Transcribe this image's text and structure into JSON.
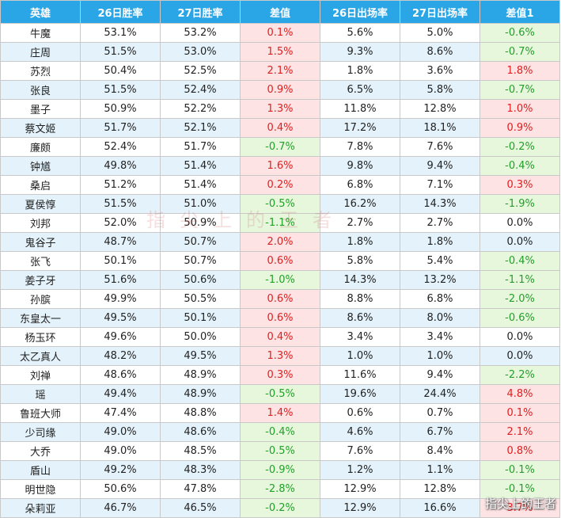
{
  "table": {
    "headers": [
      "英雄",
      "26日胜率",
      "27日胜率",
      "差值",
      "26日出场率",
      "27日出场率",
      "差值1"
    ],
    "rows": [
      [
        "牛魔",
        "53.1%",
        "53.2%",
        "0.1%",
        "5.6%",
        "5.0%",
        "-0.6%"
      ],
      [
        "庄周",
        "51.5%",
        "53.0%",
        "1.5%",
        "9.3%",
        "8.6%",
        "-0.7%"
      ],
      [
        "苏烈",
        "50.4%",
        "52.5%",
        "2.1%",
        "1.8%",
        "3.6%",
        "1.8%"
      ],
      [
        "张良",
        "51.5%",
        "52.4%",
        "0.9%",
        "6.5%",
        "5.8%",
        "-0.7%"
      ],
      [
        "墨子",
        "50.9%",
        "52.2%",
        "1.3%",
        "11.8%",
        "12.8%",
        "1.0%"
      ],
      [
        "蔡文姬",
        "51.7%",
        "52.1%",
        "0.4%",
        "17.2%",
        "18.1%",
        "0.9%"
      ],
      [
        "廉颇",
        "52.4%",
        "51.7%",
        "-0.7%",
        "7.8%",
        "7.6%",
        "-0.2%"
      ],
      [
        "钟馗",
        "49.8%",
        "51.4%",
        "1.6%",
        "9.8%",
        "9.4%",
        "-0.4%"
      ],
      [
        "桑启",
        "51.2%",
        "51.4%",
        "0.2%",
        "6.8%",
        "7.1%",
        "0.3%"
      ],
      [
        "夏侯惇",
        "51.5%",
        "51.0%",
        "-0.5%",
        "16.2%",
        "14.3%",
        "-1.9%"
      ],
      [
        "刘邦",
        "52.0%",
        "50.9%",
        "-1.1%",
        "2.7%",
        "2.7%",
        "0.0%"
      ],
      [
        "鬼谷子",
        "48.7%",
        "50.7%",
        "2.0%",
        "1.8%",
        "1.8%",
        "0.0%"
      ],
      [
        "张飞",
        "50.1%",
        "50.7%",
        "0.6%",
        "5.8%",
        "5.4%",
        "-0.4%"
      ],
      [
        "姜子牙",
        "51.6%",
        "50.6%",
        "-1.0%",
        "14.3%",
        "13.2%",
        "-1.1%"
      ],
      [
        "孙膑",
        "49.9%",
        "50.5%",
        "0.6%",
        "8.8%",
        "6.8%",
        "-2.0%"
      ],
      [
        "东皇太一",
        "49.5%",
        "50.1%",
        "0.6%",
        "8.6%",
        "8.0%",
        "-0.6%"
      ],
      [
        "杨玉环",
        "49.6%",
        "50.0%",
        "0.4%",
        "3.4%",
        "3.4%",
        "0.0%"
      ],
      [
        "太乙真人",
        "48.2%",
        "49.5%",
        "1.3%",
        "1.0%",
        "1.0%",
        "0.0%"
      ],
      [
        "刘禅",
        "48.6%",
        "48.9%",
        "0.3%",
        "11.6%",
        "9.4%",
        "-2.2%"
      ],
      [
        "瑶",
        "49.4%",
        "48.9%",
        "-0.5%",
        "19.6%",
        "24.4%",
        "4.8%"
      ],
      [
        "鲁班大师",
        "47.4%",
        "48.8%",
        "1.4%",
        "0.6%",
        "0.7%",
        "0.1%"
      ],
      [
        "少司缘",
        "49.0%",
        "48.6%",
        "-0.4%",
        "4.6%",
        "6.7%",
        "2.1%"
      ],
      [
        "大乔",
        "49.0%",
        "48.5%",
        "-0.5%",
        "7.6%",
        "8.4%",
        "0.8%"
      ],
      [
        "盾山",
        "49.2%",
        "48.3%",
        "-0.9%",
        "1.2%",
        "1.1%",
        "-0.1%"
      ],
      [
        "明世隐",
        "50.6%",
        "47.8%",
        "-2.8%",
        "12.9%",
        "12.8%",
        "-0.1%"
      ],
      [
        "朵莉亚",
        "46.7%",
        "46.5%",
        "-0.2%",
        "12.9%",
        "16.6%",
        "3.7%"
      ]
    ]
  },
  "watermark": {
    "center_text": "指尖上的王者",
    "corner_text": "指尖上的王者"
  },
  "colors": {
    "header_bg": "#2aa5e6",
    "alt_row_bg": "#e3f2fb",
    "positive_bg": "#fde3e3",
    "positive_text": "#e02020",
    "negative_bg": "#e6f7dc",
    "negative_text": "#23a02a"
  }
}
